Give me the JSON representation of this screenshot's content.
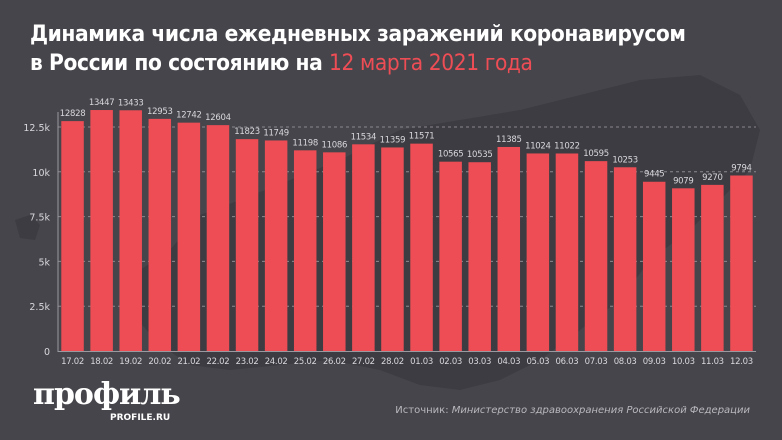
{
  "header": {
    "title_line1": "Динамика числа ежедневных заражений коронавирусом",
    "title_line2_prefix": "в России по состоянию на ",
    "title_line2_accent": "12 марта 2021 года"
  },
  "footer": {
    "logo": "профиль",
    "logo_sub": "PROFILE.RU",
    "source_label": "Источник:",
    "source_value": "Министерство здравоохранения Российской Федерации"
  },
  "colors": {
    "background": "#46454b",
    "bar": "#ee4d55",
    "accent": "#ee4d55",
    "text": "#ffffff",
    "axis_text": "#d8d8dc",
    "gridline": "#8a898f"
  },
  "chart_data": {
    "type": "bar",
    "title": "Динамика числа ежедневных заражений коронавирусом в России по состоянию на 12 марта 2021 года",
    "xlabel": "",
    "ylabel": "",
    "categories": [
      "17.02",
      "18.02",
      "19.02",
      "20.02",
      "21.02",
      "22.02",
      "23.02",
      "24.02",
      "25.02",
      "26.02",
      "27.02",
      "28.02",
      "01.03",
      "02.03",
      "03.03",
      "04.03",
      "05.03",
      "06.03",
      "07.03",
      "08.03",
      "09.03",
      "10.03",
      "11.03",
      "12.03"
    ],
    "values": [
      12828,
      13447,
      13433,
      12953,
      12742,
      12604,
      11823,
      11749,
      11198,
      11086,
      11534,
      11359,
      11571,
      10565,
      10535,
      11385,
      11024,
      11022,
      10595,
      10253,
      9445,
      9079,
      9270,
      9794
    ],
    "ylim": [
      0,
      12500
    ],
    "yticks": [
      0,
      2500,
      5000,
      7500,
      10000,
      12500
    ],
    "ytick_labels": [
      "0",
      "2.5k",
      "5k",
      "7.5k",
      "10k",
      "12.5k"
    ],
    "grid": true,
    "data_labels": true
  }
}
